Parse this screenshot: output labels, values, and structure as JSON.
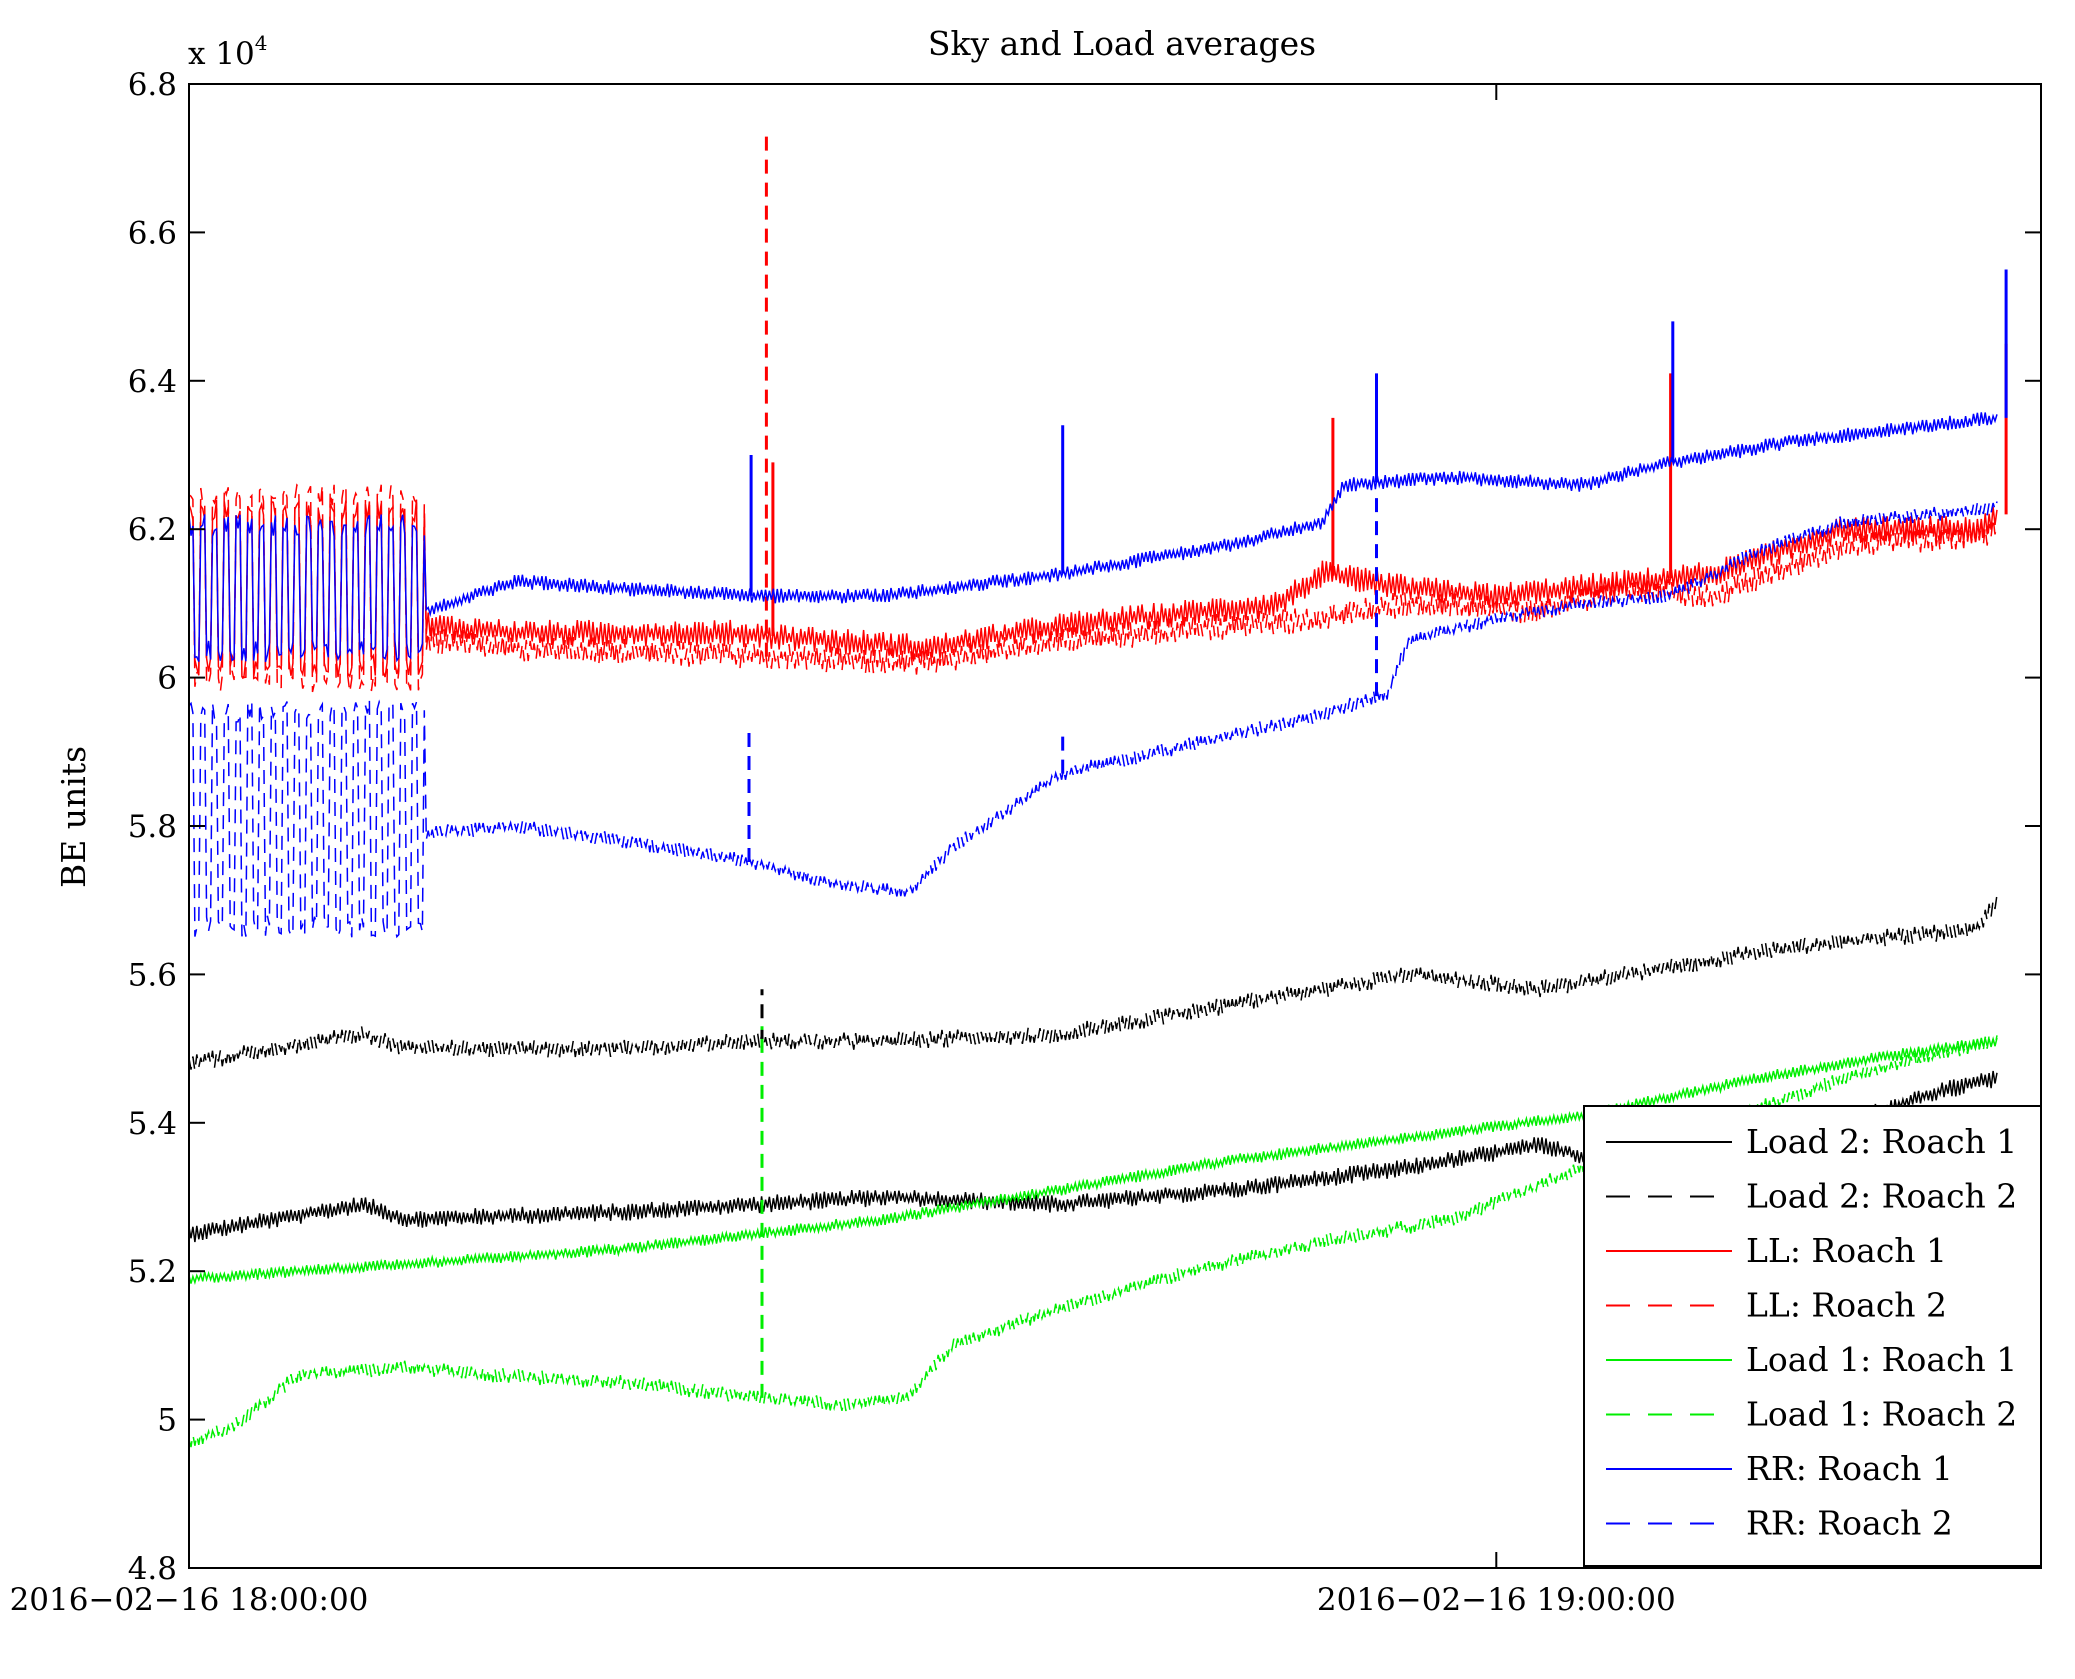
{
  "chart_data": {
    "type": "line",
    "title": "Sky and Load averages",
    "ylabel": "BE units",
    "xlabel": "",
    "y_multiplier": "x 10",
    "y_multiplier_exp": "4",
    "ylim": [
      4.8,
      6.8
    ],
    "y_ticks": [
      "4.8",
      "5",
      "5.2",
      "5.4",
      "5.6",
      "5.8",
      "6",
      "6.2",
      "6.4",
      "6.6",
      "6.8"
    ],
    "x_range_minutes": [
      0,
      85
    ],
    "x_ticks": [
      {
        "minute": 0,
        "label": "2016−02−16 18:00:00"
      },
      {
        "minute": 60,
        "label": "2016−02−16 19:00:00"
      }
    ],
    "legend_position": "bottom-right",
    "grid": false,
    "series": [
      {
        "name": "Load 2: Roach 1",
        "color": "#000000",
        "dash": "solid",
        "noise": 0.012,
        "points": [
          [
            0,
            5.25
          ],
          [
            8,
            5.29
          ],
          [
            10,
            5.27
          ],
          [
            20,
            5.28
          ],
          [
            26,
            5.29
          ],
          [
            32,
            5.3
          ],
          [
            40,
            5.29
          ],
          [
            48,
            5.31
          ],
          [
            56,
            5.34
          ],
          [
            62,
            5.37
          ],
          [
            66,
            5.34
          ],
          [
            70,
            5.37
          ],
          [
            76,
            5.4
          ],
          [
            80,
            5.44
          ],
          [
            83,
            5.46
          ]
        ]
      },
      {
        "name": "Load 2: Roach 2",
        "color": "#000000",
        "dash": "dashed",
        "noise": 0.012,
        "points": [
          [
            0,
            5.48
          ],
          [
            8,
            5.52
          ],
          [
            10,
            5.5
          ],
          [
            20,
            5.5
          ],
          [
            26,
            5.51
          ],
          [
            32,
            5.51
          ],
          [
            40,
            5.52
          ],
          [
            48,
            5.56
          ],
          [
            56,
            5.6
          ],
          [
            62,
            5.58
          ],
          [
            68,
            5.61
          ],
          [
            72,
            5.63
          ],
          [
            78,
            5.65
          ],
          [
            82,
            5.66
          ],
          [
            83,
            5.7
          ]
        ],
        "spikes": [
          {
            "minute": 26.3,
            "value": 5.58
          }
        ]
      },
      {
        "name": "LL: Roach 1",
        "color": "#ff0000",
        "dash": "solid",
        "noise": 0.018,
        "points": [
          [
            0,
            6.1
          ],
          [
            10,
            6.12
          ],
          [
            11,
            6.07
          ],
          [
            15,
            6.06
          ],
          [
            25,
            6.06
          ],
          [
            34,
            6.04
          ],
          [
            40,
            6.07
          ],
          [
            50,
            6.1
          ],
          [
            52,
            6.14
          ],
          [
            56,
            6.12
          ],
          [
            60,
            6.11
          ],
          [
            70,
            6.14
          ],
          [
            76,
            6.2
          ],
          [
            82,
            6.2
          ],
          [
            83,
            6.22
          ]
        ],
        "bursts": [
          [
            0,
            10.8,
            6.0,
            6.24
          ]
        ],
        "spikes": [
          {
            "minute": 26.8,
            "value": 6.29
          },
          {
            "minute": 52.5,
            "value": 6.35
          },
          {
            "minute": 68,
            "value": 6.41
          },
          {
            "minute": 83.4,
            "value": 6.45
          }
        ]
      },
      {
        "name": "LL: Roach 2",
        "color": "#ff0000",
        "dash": "dashed",
        "noise": 0.018,
        "points": [
          [
            0,
            6.04
          ],
          [
            11,
            6.05
          ],
          [
            15,
            6.04
          ],
          [
            25,
            6.03
          ],
          [
            34,
            6.02
          ],
          [
            40,
            6.05
          ],
          [
            52,
            6.08
          ],
          [
            56,
            6.1
          ],
          [
            62,
            6.09
          ],
          [
            66,
            6.12
          ],
          [
            70,
            6.11
          ],
          [
            76,
            6.18
          ],
          [
            82,
            6.19
          ],
          [
            83,
            6.2
          ]
        ],
        "bursts": [
          [
            0,
            10.8,
            5.98,
            6.26
          ]
        ],
        "spikes": [
          {
            "minute": 26.5,
            "value": 6.73
          }
        ]
      },
      {
        "name": "Load 1: Roach 1",
        "color": "#00ee00",
        "dash": "solid",
        "noise": 0.008,
        "points": [
          [
            0,
            5.19
          ],
          [
            10,
            5.21
          ],
          [
            20,
            5.23
          ],
          [
            26,
            5.25
          ],
          [
            32,
            5.27
          ],
          [
            40,
            5.31
          ],
          [
            48,
            5.35
          ],
          [
            56,
            5.38
          ],
          [
            64,
            5.41
          ],
          [
            72,
            5.46
          ],
          [
            78,
            5.49
          ],
          [
            83,
            5.51
          ]
        ]
      },
      {
        "name": "Load 1: Roach 2",
        "color": "#00ee00",
        "dash": "dashed",
        "noise": 0.01,
        "points": [
          [
            0,
            4.97
          ],
          [
            2,
            4.99
          ],
          [
            5,
            5.06
          ],
          [
            10,
            5.07
          ],
          [
            14,
            5.06
          ],
          [
            20,
            5.05
          ],
          [
            26,
            5.03
          ],
          [
            30,
            5.02
          ],
          [
            33,
            5.03
          ],
          [
            35,
            5.1
          ],
          [
            40,
            5.15
          ],
          [
            46,
            5.2
          ],
          [
            52,
            5.24
          ],
          [
            58,
            5.27
          ],
          [
            64,
            5.34
          ],
          [
            68,
            5.38
          ],
          [
            72,
            5.42
          ],
          [
            76,
            5.46
          ],
          [
            80,
            5.49
          ],
          [
            83,
            5.51
          ]
        ],
        "spikes": [
          {
            "minute": 26.3,
            "value": 5.53
          }
        ]
      },
      {
        "name": "RR: Roach 1",
        "color": "#0000ff",
        "dash": "solid",
        "noise": 0.01,
        "points": [
          [
            0,
            6.12
          ],
          [
            10,
            6.16
          ],
          [
            11,
            6.09
          ],
          [
            12,
            6.1
          ],
          [
            15,
            6.13
          ],
          [
            20,
            6.12
          ],
          [
            26,
            6.11
          ],
          [
            32,
            6.11
          ],
          [
            40,
            6.14
          ],
          [
            48,
            6.18
          ],
          [
            52,
            6.21
          ],
          [
            53,
            6.26
          ],
          [
            58,
            6.27
          ],
          [
            64,
            6.26
          ],
          [
            68,
            6.29
          ],
          [
            74,
            6.32
          ],
          [
            80,
            6.34
          ],
          [
            83,
            6.35
          ]
        ],
        "bursts": [
          [
            0,
            10.8,
            6.02,
            6.22
          ]
        ],
        "spikes": [
          {
            "minute": 25.8,
            "value": 6.3
          },
          {
            "minute": 40.1,
            "value": 6.34
          },
          {
            "minute": 54.5,
            "value": 6.41
          },
          {
            "minute": 68.1,
            "value": 6.48
          },
          {
            "minute": 83.4,
            "value": 6.55
          }
        ]
      },
      {
        "name": "RR: Roach 2",
        "color": "#0000ff",
        "dash": "dashed",
        "noise": 0.01,
        "points": [
          [
            0,
            5.69
          ],
          [
            11,
            5.79
          ],
          [
            15,
            5.8
          ],
          [
            20,
            5.78
          ],
          [
            26,
            5.75
          ],
          [
            30,
            5.72
          ],
          [
            33,
            5.71
          ],
          [
            35,
            5.77
          ],
          [
            40,
            5.87
          ],
          [
            46,
            5.91
          ],
          [
            52,
            5.95
          ],
          [
            55,
            5.98
          ],
          [
            56,
            6.05
          ],
          [
            60,
            6.08
          ],
          [
            64,
            6.1
          ],
          [
            68,
            6.11
          ],
          [
            72,
            6.17
          ],
          [
            76,
            6.21
          ],
          [
            80,
            6.22
          ],
          [
            83,
            6.23
          ]
        ],
        "bursts": [
          [
            0,
            10.8,
            5.65,
            5.97
          ]
        ],
        "spikes": [
          {
            "minute": 25.7,
            "value": 5.93
          },
          {
            "minute": 40.1,
            "value": 5.93
          },
          {
            "minute": 54.5,
            "value": 6.25
          }
        ]
      }
    ]
  }
}
